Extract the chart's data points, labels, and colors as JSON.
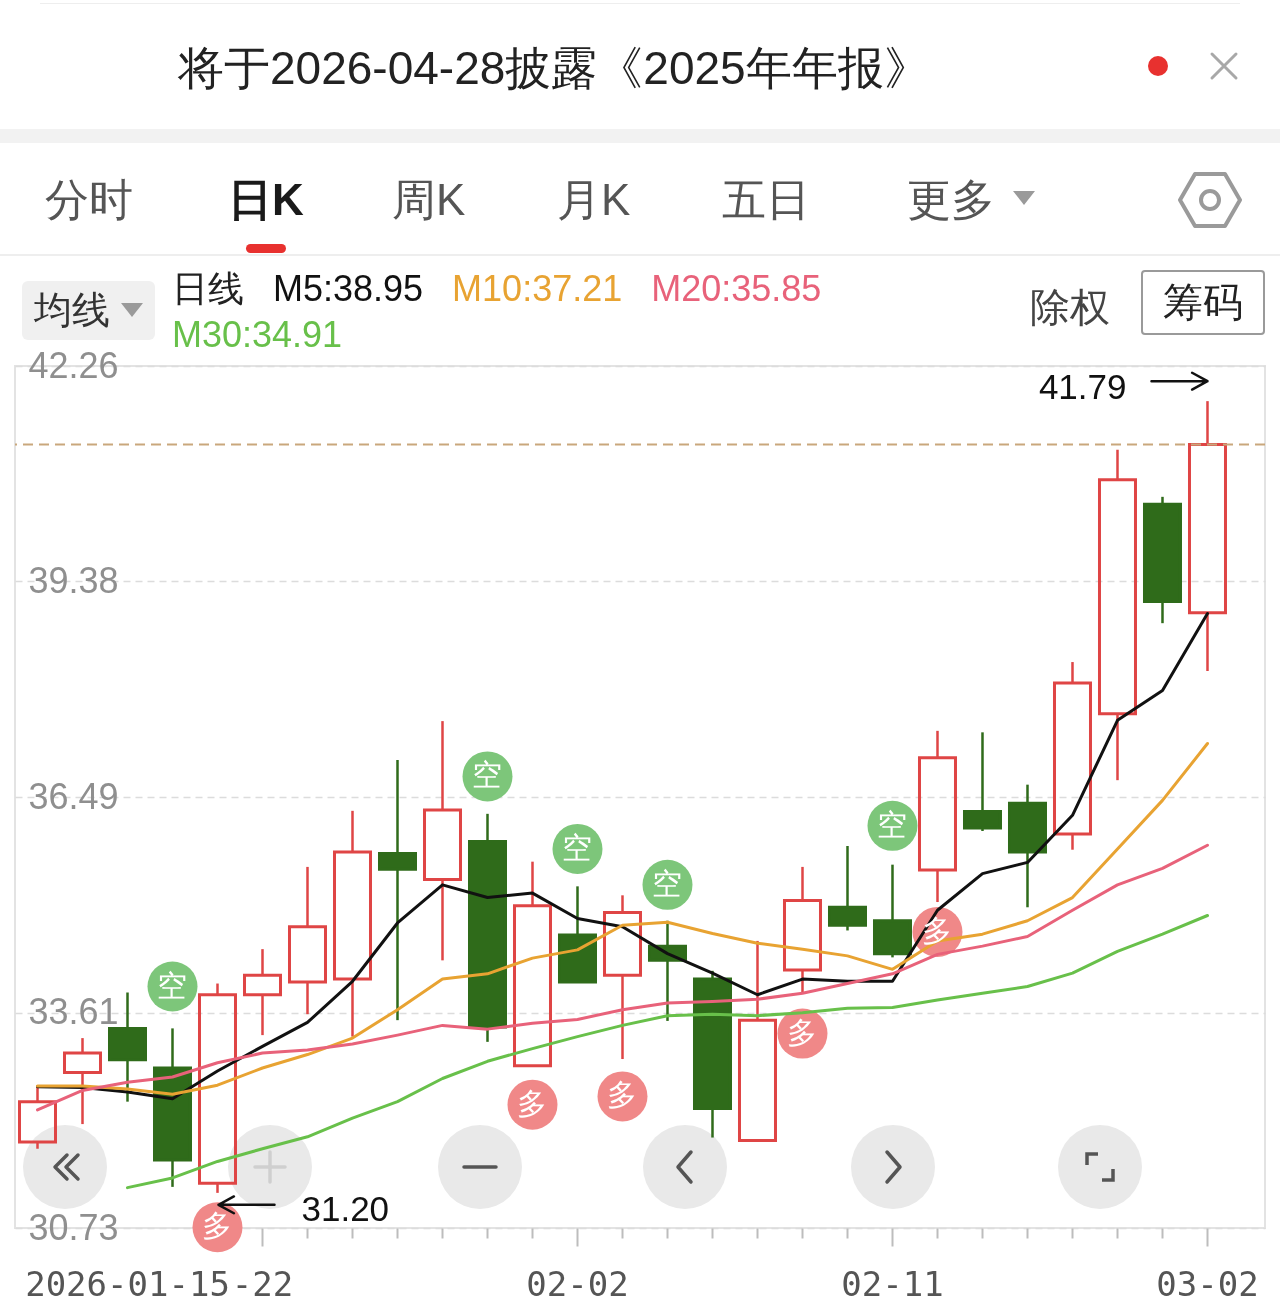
{
  "chart_data": {
    "type": "candlestick",
    "title": "将于2026-04-28披露《2025年年报》",
    "legend_title": "日线",
    "categories": [
      null,
      null,
      "2026-01-15",
      null,
      null,
      "-22",
      null,
      null,
      null,
      null,
      null,
      null,
      "02-02",
      null,
      null,
      null,
      null,
      null,
      null,
      "02-11",
      null,
      null,
      null,
      null,
      null,
      null,
      "03-02"
    ],
    "ohlc": [
      [
        31.88,
        32.62,
        31.79,
        32.42
      ],
      [
        32.81,
        33.27,
        32.12,
        33.07
      ],
      [
        33.4,
        33.88,
        32.42,
        32.98
      ],
      [
        32.87,
        33.4,
        31.28,
        31.64
      ],
      [
        31.33,
        34.0,
        31.2,
        33.85
      ],
      [
        33.85,
        34.46,
        33.31,
        34.11
      ],
      [
        34.02,
        35.56,
        33.59,
        34.76
      ],
      [
        34.06,
        36.31,
        33.29,
        35.76
      ],
      [
        35.74,
        36.99,
        33.51,
        35.53
      ],
      [
        35.39,
        37.51,
        34.31,
        36.32
      ],
      [
        35.9,
        36.27,
        33.22,
        33.42
      ],
      [
        32.9,
        35.63,
        32.9,
        35.04
      ],
      [
        34.65,
        35.3,
        34.02,
        34.02
      ],
      [
        34.11,
        35.18,
        32.99,
        34.95
      ],
      [
        34.5,
        34.84,
        33.5,
        34.31
      ],
      [
        34.06,
        34.17,
        31.94,
        32.33
      ],
      [
        31.9,
        34.57,
        31.9,
        33.51
      ],
      [
        34.18,
        35.56,
        33.87,
        35.11
      ],
      [
        35.02,
        35.84,
        34.71,
        34.78
      ],
      [
        34.84,
        35.59,
        34.35,
        34.4
      ],
      [
        35.52,
        37.38,
        35.09,
        37.02
      ],
      [
        36.3,
        37.36,
        36.04,
        36.08
      ],
      [
        36.41,
        36.66,
        35.02,
        35.76
      ],
      [
        36.0,
        38.3,
        35.79,
        38.02
      ],
      [
        37.61,
        41.14,
        36.72,
        40.74
      ],
      [
        40.41,
        40.51,
        38.82,
        39.11
      ],
      [
        38.96,
        41.79,
        38.18,
        41.21
      ]
    ],
    "colors": [
      "#df4545",
      "#df4545",
      "#2f6b1a",
      "#2f6b1a",
      "#df4545",
      "#df4545",
      "#df4545",
      "#df4545",
      "#2f6b1a",
      "#df4545",
      "#2f6b1a",
      "#df4545",
      "#2f6b1a",
      "#df4545",
      "#2f6b1a",
      "#2f6b1a",
      "#df4545",
      "#df4545",
      "#2f6b1a",
      "#2f6b1a",
      "#df4545",
      "#2f6b1a",
      "#2f6b1a",
      "#df4545",
      "#df4545",
      "#2f6b1a",
      "#df4545"
    ],
    "series": [
      {
        "name": "M5:38.95",
        "type": "line",
        "color": "#111111",
        "values": [
          32.62,
          32.61,
          32.55,
          32.46,
          32.83,
          33.16,
          33.48,
          34.03,
          34.81,
          35.32,
          35.15,
          35.21,
          34.87,
          34.76,
          34.4,
          34.14,
          33.85,
          34.06,
          34.03,
          34.03,
          34.98,
          35.47,
          35.62,
          36.25,
          37.52,
          37.92,
          38.95
        ]
      },
      {
        "name": "M10:37.21",
        "type": "line",
        "color": "#e8a332",
        "values": [
          32.63,
          32.63,
          32.59,
          32.52,
          32.64,
          32.87,
          33.05,
          33.27,
          33.65,
          34.06,
          34.13,
          34.34,
          34.45,
          34.78,
          34.82,
          34.67,
          34.54,
          34.46,
          34.37,
          34.19,
          34.57,
          34.66,
          34.84,
          35.15,
          35.8,
          36.45,
          37.21
        ]
      },
      {
        "name": "M20:35.85",
        "type": "line",
        "color": "#e8627a",
        "values": [
          32.31,
          32.57,
          32.68,
          32.75,
          32.94,
          33.07,
          33.11,
          33.19,
          33.31,
          33.44,
          33.39,
          33.47,
          33.52,
          33.65,
          33.74,
          33.76,
          33.79,
          33.87,
          34.0,
          34.13,
          34.39,
          34.5,
          34.63,
          34.98,
          35.32,
          35.54,
          35.85
        ]
      },
      {
        "name": "M30:34.91",
        "type": "line",
        "color": "#68c04a",
        "values": [
          null,
          null,
          31.27,
          31.4,
          31.62,
          31.79,
          31.95,
          32.2,
          32.42,
          32.73,
          32.96,
          33.13,
          33.29,
          33.44,
          33.57,
          33.59,
          33.57,
          33.61,
          33.67,
          33.68,
          33.78,
          33.87,
          33.96,
          34.14,
          34.43,
          34.66,
          34.91
        ]
      },
      {
        "type": "scatter",
        "color": "#7dc67a",
        "values": [
          null,
          null,
          null,
          33.96,
          null,
          null,
          null,
          null,
          null,
          null,
          36.77,
          null,
          35.8,
          null,
          35.32,
          null,
          null,
          null,
          null,
          36.11,
          null,
          null,
          null,
          null,
          null,
          null,
          null
        ],
        "value_labels": [
          null,
          null,
          null,
          "空",
          null,
          null,
          null,
          null,
          null,
          null,
          "空",
          null,
          "空",
          null,
          "空",
          null,
          null,
          null,
          null,
          "空",
          null,
          null,
          null,
          null,
          null,
          null,
          null
        ]
      },
      {
        "type": "scatter",
        "color": "#f08888",
        "values": [
          null,
          null,
          null,
          null,
          30.74,
          null,
          null,
          null,
          null,
          null,
          null,
          32.38,
          null,
          32.49,
          null,
          null,
          null,
          33.33,
          null,
          null,
          34.69,
          null,
          null,
          null,
          null,
          null,
          null
        ],
        "value_labels": [
          null,
          null,
          null,
          null,
          "多",
          null,
          null,
          null,
          null,
          null,
          null,
          "多",
          null,
          "多",
          null,
          null,
          null,
          "多",
          null,
          null,
          "多",
          null,
          null,
          null,
          null,
          null,
          null
        ]
      }
    ],
    "ylim": [
      30.73,
      42.26
    ],
    "yticks": [
      30.73,
      33.61,
      36.49,
      39.38,
      42.26
    ],
    "grid": "y",
    "legend": "top left",
    "ref_lines": [
      {
        "axis": "y",
        "value": 41.21,
        "color": "#c9a77c",
        "line_style": "dashed"
      }
    ],
    "annotations": [
      "41.79",
      "31.20",
      "分时",
      "日K",
      "周K",
      "月K",
      "五日",
      "更多",
      "均线",
      "除权",
      "筹码"
    ]
  }
}
